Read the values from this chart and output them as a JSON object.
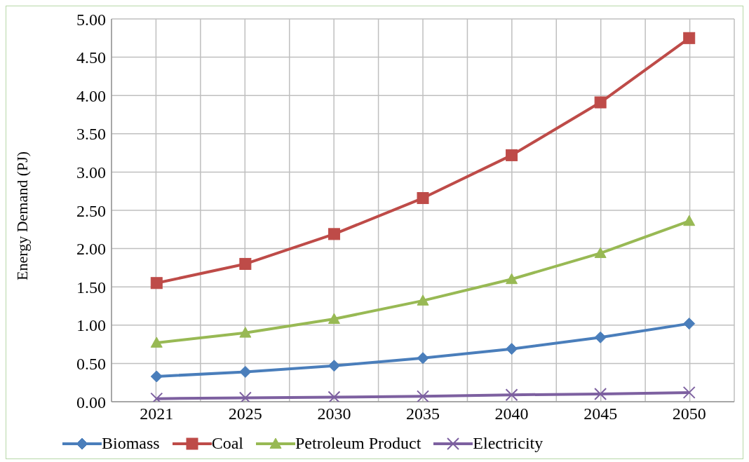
{
  "chart_data": {
    "type": "line",
    "ylabel": "Energy Demand (PJ)",
    "categories": [
      "2021",
      "2025",
      "2030",
      "2035",
      "2040",
      "2045",
      "2050"
    ],
    "series": [
      {
        "name": "Biomass",
        "color": "#4a7ebb",
        "marker": "diamond",
        "values": [
          0.33,
          0.39,
          0.47,
          0.57,
          0.69,
          0.84,
          1.02
        ]
      },
      {
        "name": "Coal",
        "color": "#be4b48",
        "marker": "square",
        "values": [
          1.55,
          1.8,
          2.19,
          2.66,
          3.22,
          3.91,
          4.75
        ]
      },
      {
        "name": "Petroleum Product",
        "color": "#98b954",
        "marker": "triangle",
        "values": [
          0.77,
          0.9,
          1.08,
          1.32,
          1.6,
          1.94,
          2.36
        ]
      },
      {
        "name": "Electricity",
        "color": "#7d60a0",
        "marker": "cross",
        "values": [
          0.04,
          0.05,
          0.06,
          0.07,
          0.09,
          0.1,
          0.12
        ]
      }
    ],
    "ylim": [
      0,
      5
    ],
    "yticks": [
      {
        "value": 0,
        "label": "0.00"
      },
      {
        "value": 0.5,
        "label": "0.50"
      },
      {
        "value": 1,
        "label": "1.00"
      },
      {
        "value": 1.5,
        "label": "1.50"
      },
      {
        "value": 2,
        "label": "2.00"
      },
      {
        "value": 2.5,
        "label": "2.50"
      },
      {
        "value": 3,
        "label": "3.00"
      },
      {
        "value": 3.5,
        "label": "3.50"
      },
      {
        "value": 4,
        "label": "4.00"
      },
      {
        "value": 4.5,
        "label": "4.50"
      },
      {
        "value": 5,
        "label": "5.00"
      }
    ],
    "grid": true,
    "legend": "bottom",
    "line_style": "solid"
  }
}
